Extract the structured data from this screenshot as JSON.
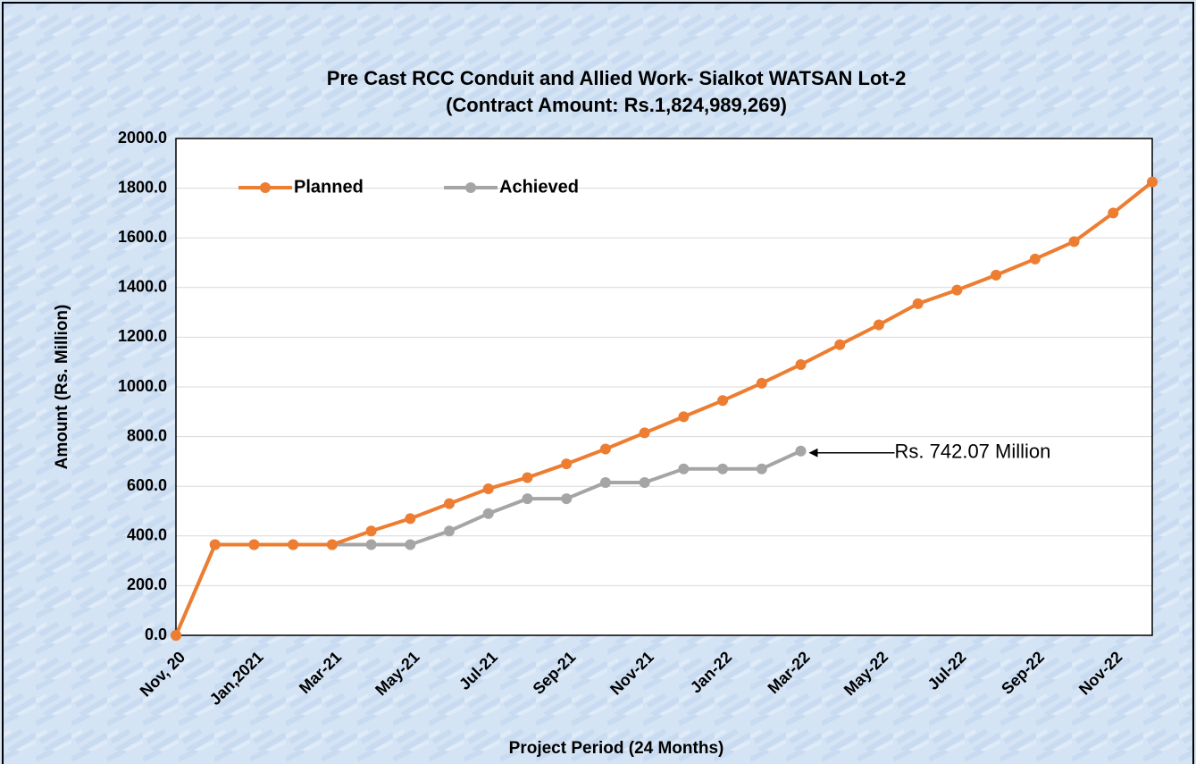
{
  "chart_data": {
    "type": "line",
    "title": "Pre Cast RCC Conduit and Allied Work- Sialkot WATSAN Lot-2",
    "subtitle": "(Contract Amount: Rs.1,824,989,269)",
    "x_label": "Project Period (24 Months)",
    "y_label": "Amount (Rs. Million)",
    "categories": [
      "Nov, 20",
      null,
      "Jan,2021",
      null,
      "Mar-21",
      null,
      "May-21",
      null,
      "Jul-21",
      null,
      "Sep-21",
      null,
      "Nov-21",
      null,
      "Jan-22",
      null,
      "Mar-22",
      null,
      "May-22",
      null,
      "Jul-22",
      null,
      "Sep-22",
      null,
      "Nov-22",
      null
    ],
    "series": [
      {
        "name": "Planned",
        "color": "#ed7d31",
        "values": [
          0,
          365,
          365,
          365,
          365,
          420,
          470,
          530,
          590,
          635,
          690,
          750,
          815,
          880,
          945,
          1015,
          1090,
          1170,
          1250,
          1335,
          1390,
          1450,
          1515,
          1585,
          1700,
          1825
        ]
      },
      {
        "name": "Achieved",
        "color": "#a5a5a5",
        "values": [
          0,
          365,
          365,
          365,
          365,
          365,
          365,
          420,
          490,
          550,
          550,
          615,
          615,
          670,
          670,
          670,
          742.07,
          null,
          null,
          null,
          null,
          null,
          null,
          null,
          null,
          null
        ]
      }
    ],
    "annotation": "Rs. 742.07 Million",
    "ylim": [
      0,
      2000
    ],
    "yticks": [
      {
        "value": 0,
        "label": "0.0"
      },
      {
        "value": 200,
        "label": "200.0"
      },
      {
        "value": 400,
        "label": "400.0"
      },
      {
        "value": 600,
        "label": "600.0"
      },
      {
        "value": 800,
        "label": "800.0"
      },
      {
        "value": 1000,
        "label": "1000.0"
      },
      {
        "value": 1200,
        "label": "1200.0"
      },
      {
        "value": 1400,
        "label": "1400.0"
      },
      {
        "value": 1600,
        "label": "1600.0"
      },
      {
        "value": 1800,
        "label": "1800.0"
      },
      {
        "value": 2000,
        "label": "2000.0"
      }
    ],
    "grid": true,
    "legend": "top-left"
  }
}
